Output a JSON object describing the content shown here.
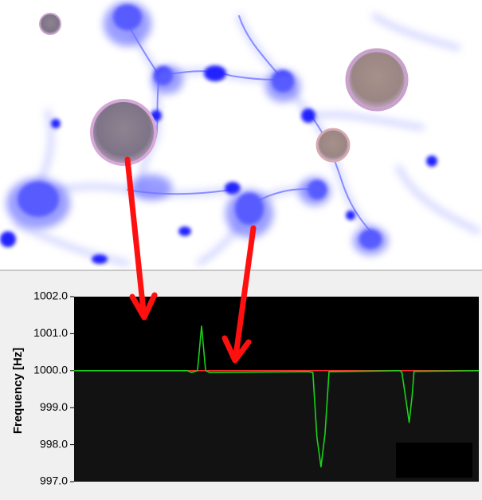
{
  "colors": {
    "plot_background": "#000000",
    "signal": "#19d219",
    "baseline": "#ff2a2a",
    "arrow": "#ff1010",
    "cells": "#1a1aff",
    "particle": "#8c7c88"
  },
  "microscopy": {
    "description_free": true,
    "stain_color": "#1a1aff"
  },
  "chart_data": {
    "type": "line",
    "title": "",
    "xlabel": "",
    "ylabel": "Frequency [Hz]",
    "ylim": [
      997.0,
      1002.0
    ],
    "yticks": [
      "1002.0",
      "1001.0",
      "1000.0",
      "999.0",
      "998.0",
      "997.0"
    ],
    "ytick_values": [
      1002.0,
      1001.0,
      1000.0,
      999.0,
      998.0,
      997.0
    ],
    "xlim": [
      0,
      100
    ],
    "grid": false,
    "series": [
      {
        "x": [
          0,
          28,
          29,
          30.5,
          31.5,
          32.5,
          33.5,
          58,
          59,
          60,
          61,
          62,
          63,
          80.5,
          81,
          82,
          82.8,
          83.5,
          84,
          100
        ],
        "y": [
          1000.0,
          1000.0,
          999.95,
          1000.0,
          1001.2,
          1000.0,
          999.95,
          999.97,
          999.95,
          998.2,
          997.4,
          998.3,
          999.97,
          1000.0,
          999.95,
          999.2,
          998.6,
          999.3,
          999.98,
          1000.0
        ]
      }
    ],
    "baseline": 1000.0
  }
}
